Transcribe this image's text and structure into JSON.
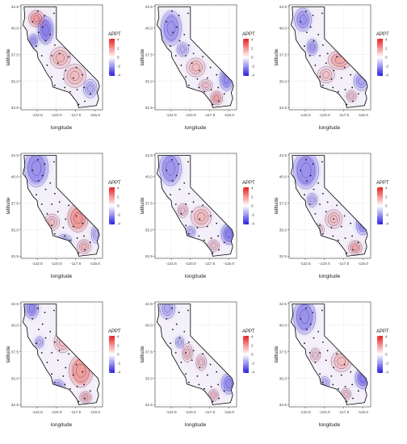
{
  "axes": {
    "xlabel": "longitude",
    "ylabel": "latitude",
    "xticks": [
      "-122.5",
      "-120.0",
      "-117.5",
      "-115.0"
    ],
    "yticks": [
      "42.5",
      "40.0",
      "37.5",
      "35.0",
      "32.5"
    ]
  },
  "legend": {
    "title": "APPT",
    "ticks": [
      "4",
      "2",
      "0",
      "-2",
      "-4"
    ],
    "colors": {
      "high": "#e8201f",
      "mid": "#ffffff",
      "low": "#2a1ee0"
    }
  },
  "map_colors": {
    "land_base": "#f3f0fa",
    "red_zone": "#f08a80",
    "blue_zone": "#7e72e6",
    "contour": "#3a3a9a",
    "border": "#000000",
    "station": "#111111"
  },
  "panels": [
    {
      "id": "p1",
      "redzones": [
        [
          -122.6,
          40.9,
          0.9,
          0.7,
          0.85
        ],
        [
          -119.5,
          37.2,
          1.2,
          0.9,
          0.55
        ],
        [
          -117.6,
          35.5,
          1.3,
          1.0,
          0.5
        ]
      ],
      "bluezones": [
        [
          -121.4,
          39.8,
          0.9,
          1.2,
          0.9
        ],
        [
          -123.0,
          38.8,
          0.5,
          0.6,
          0.8
        ],
        [
          -115.6,
          34.3,
          0.8,
          0.8,
          0.5
        ]
      ]
    },
    {
      "id": "p2",
      "redzones": [
        [
          -119.3,
          36.3,
          1.1,
          0.8,
          0.5
        ],
        [
          -116.6,
          33.4,
          0.7,
          0.6,
          0.8
        ],
        [
          -118.0,
          34.6,
          0.8,
          0.5,
          0.5
        ]
      ],
      "bluezones": [
        [
          -122.5,
          40.0,
          1.2,
          1.5,
          0.7
        ],
        [
          -115.3,
          35.2,
          0.8,
          1.0,
          0.8
        ],
        [
          -121.0,
          38.0,
          0.7,
          0.6,
          0.5
        ]
      ]
    },
    {
      "id": "p3",
      "redzones": [
        [
          -118.0,
          37.0,
          1.4,
          0.8,
          0.7
        ],
        [
          -119.8,
          35.6,
          1.0,
          0.7,
          0.45
        ],
        [
          -116.5,
          33.6,
          0.6,
          0.5,
          0.5
        ]
      ],
      "bluezones": [
        [
          -122.8,
          40.8,
          1.0,
          1.0,
          0.7
        ],
        [
          -121.6,
          38.2,
          0.6,
          0.7,
          0.7
        ],
        [
          -115.2,
          35.0,
          0.9,
          0.8,
          0.6
        ]
      ]
    },
    {
      "id": "p4",
      "redzones": [
        [
          -117.2,
          36.1,
          1.2,
          1.2,
          0.85
        ],
        [
          -120.6,
          35.7,
          0.9,
          0.7,
          0.5
        ],
        [
          -116.4,
          33.4,
          0.8,
          0.6,
          0.6
        ]
      ],
      "bluezones": [
        [
          -122.6,
          40.8,
          1.4,
          1.6,
          0.75
        ],
        [
          -119.0,
          34.0,
          0.9,
          0.5,
          0.5
        ],
        [
          -114.8,
          34.6,
          0.6,
          0.8,
          0.5
        ]
      ]
    },
    {
      "id": "p5",
      "redzones": [
        [
          -118.6,
          36.2,
          1.2,
          0.9,
          0.55
        ],
        [
          -121.0,
          36.8,
          0.6,
          0.6,
          0.5
        ],
        [
          -117.0,
          33.5,
          0.7,
          0.5,
          0.5
        ]
      ],
      "bluezones": [
        [
          -122.6,
          40.8,
          1.3,
          1.5,
          0.7
        ],
        [
          -115.0,
          34.6,
          0.9,
          0.9,
          0.9
        ],
        [
          -120.0,
          34.8,
          0.6,
          0.5,
          0.5
        ]
      ]
    },
    {
      "id": "p6",
      "redzones": [
        [
          -118.8,
          36.0,
          1.0,
          0.8,
          0.5
        ],
        [
          -116.0,
          33.3,
          0.8,
          0.6,
          0.75
        ],
        [
          -120.8,
          35.0,
          0.7,
          0.5,
          0.45
        ]
      ],
      "bluezones": [
        [
          -122.4,
          40.6,
          1.5,
          1.6,
          0.75
        ],
        [
          -115.0,
          35.5,
          0.8,
          0.9,
          0.8
        ],
        [
          -121.6,
          37.8,
          0.6,
          0.6,
          0.5
        ]
      ]
    },
    {
      "id": "p7",
      "redzones": [
        [
          -116.8,
          35.7,
          1.4,
          1.4,
          0.8
        ],
        [
          -119.2,
          38.4,
          1.0,
          0.9,
          0.5
        ],
        [
          -116.2,
          33.2,
          0.7,
          0.5,
          0.7
        ]
      ],
      "bluezones": [
        [
          -123.2,
          41.6,
          0.8,
          0.9,
          0.8
        ],
        [
          -119.8,
          34.2,
          0.8,
          0.6,
          0.6
        ],
        [
          -122.2,
          38.4,
          0.5,
          0.5,
          0.5
        ]
      ]
    },
    {
      "id": "p8",
      "redzones": [
        [
          -120.4,
          37.4,
          0.6,
          0.8,
          0.55
        ],
        [
          -118.6,
          36.5,
          0.6,
          0.7,
          0.5
        ],
        [
          -117.0,
          33.4,
          0.6,
          0.5,
          0.6
        ]
      ],
      "bluezones": [
        [
          -123.0,
          41.6,
          0.9,
          0.9,
          0.55
        ],
        [
          -115.0,
          34.5,
          0.9,
          0.9,
          0.8
        ],
        [
          -121.4,
          38.4,
          0.5,
          0.5,
          0.5
        ]
      ]
    },
    {
      "id": "p9",
      "redzones": [
        [
          -117.8,
          36.6,
          1.2,
          0.9,
          0.5
        ],
        [
          -121.2,
          37.2,
          0.6,
          0.6,
          0.45
        ],
        [
          -117.2,
          33.5,
          0.6,
          0.5,
          0.5
        ]
      ],
      "bluezones": [
        [
          -122.6,
          40.8,
          1.3,
          1.5,
          0.75
        ],
        [
          -115.0,
          35.0,
          0.9,
          0.9,
          0.9
        ],
        [
          -120.0,
          34.6,
          0.6,
          0.5,
          0.5
        ]
      ]
    }
  ],
  "stations": [
    [
      -122.4,
      41.6
    ],
    [
      -121.5,
      41.2
    ],
    [
      -120.3,
      41.4
    ],
    [
      -123.1,
      40.6
    ],
    [
      -121.8,
      40.1
    ],
    [
      -122.3,
      39.6
    ],
    [
      -120.8,
      39.4
    ],
    [
      -121.4,
      38.8
    ],
    [
      -122.6,
      38.3
    ],
    [
      -120.2,
      38.4
    ],
    [
      -121.9,
      37.4
    ],
    [
      -120.6,
      37.4
    ],
    [
      -119.6,
      37.6
    ],
    [
      -118.4,
      37.3
    ],
    [
      -121.2,
      36.5
    ],
    [
      -119.8,
      36.7
    ],
    [
      -118.8,
      36.0
    ],
    [
      -117.4,
      36.3
    ],
    [
      -120.6,
      35.4
    ],
    [
      -119.1,
      35.2
    ],
    [
      -117.8,
      35.3
    ],
    [
      -116.6,
      35.6
    ],
    [
      -120.2,
      34.6
    ],
    [
      -118.9,
      34.4
    ],
    [
      -118.2,
      34.0
    ],
    [
      -117.3,
      34.2
    ],
    [
      -116.4,
      34.4
    ],
    [
      -115.6,
      33.8
    ],
    [
      -117.1,
      32.8
    ],
    [
      -116.3,
      33.1
    ]
  ]
}
